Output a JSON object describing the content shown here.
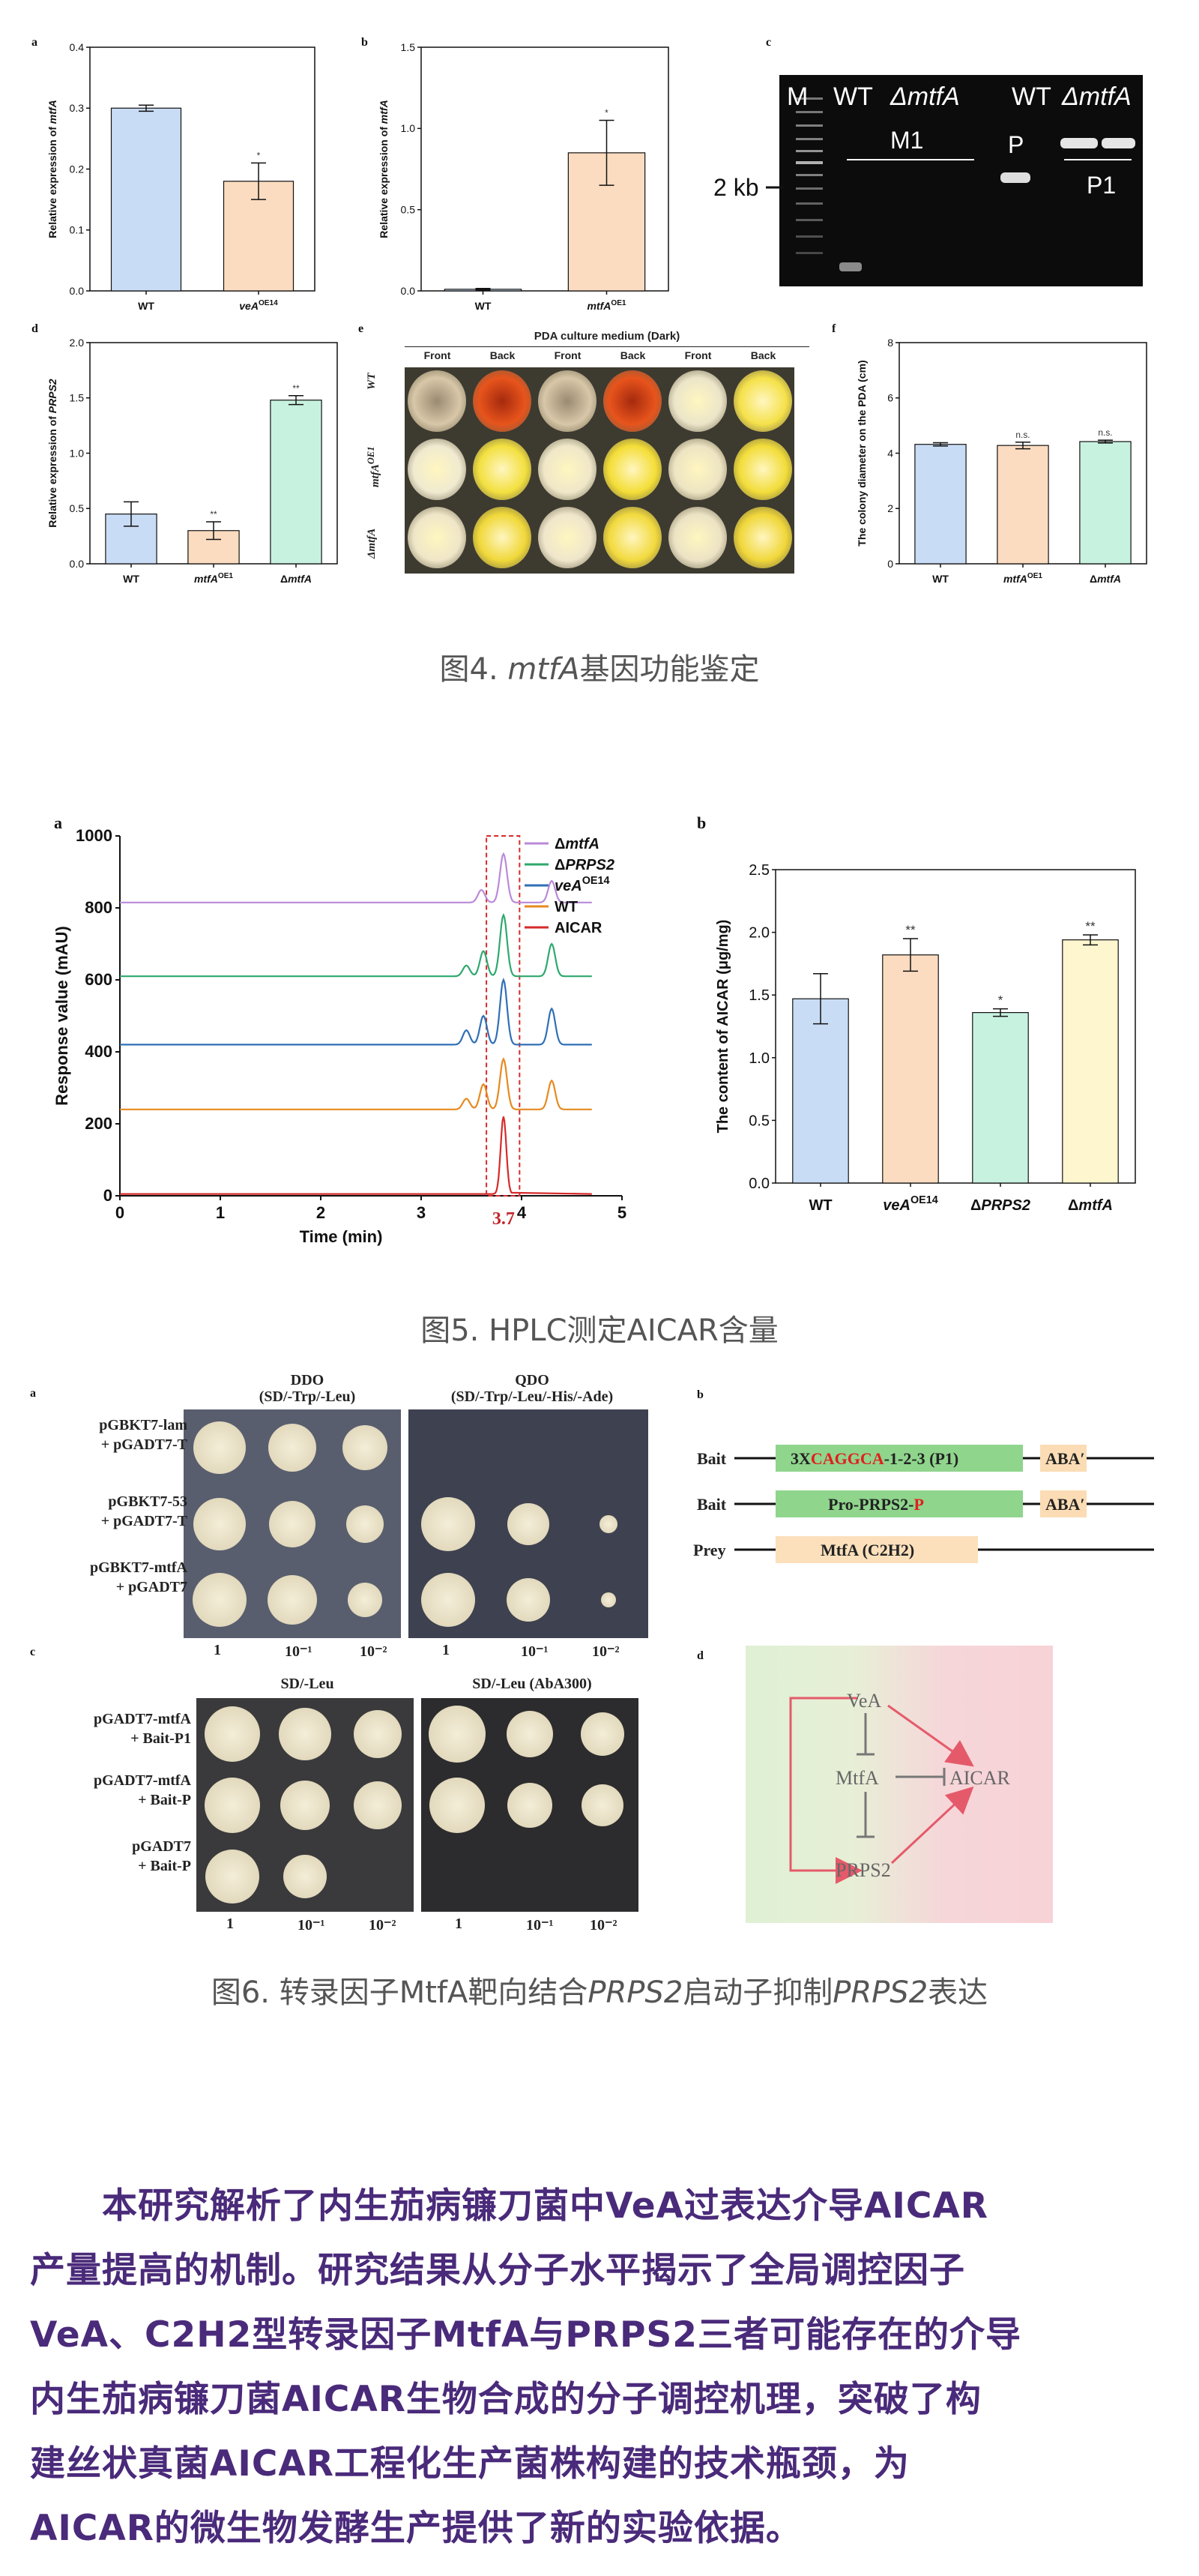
{
  "fig4": {
    "panels": {
      "a": "a",
      "b": "b",
      "c": "c",
      "d": "d",
      "e": "e",
      "f": "f"
    },
    "caption_prefix": "图4. ",
    "caption_gene": "mtfA",
    "caption_suffix": "基因功能鉴定",
    "gel": {
      "label_M": "M",
      "label_WT1": "WT",
      "label_dmtfA1": "ΔmtfA",
      "label_WT2": "WT",
      "label_dmtfA2": "ΔmtfA",
      "label_M1": "M1",
      "label_P": "P",
      "label_P1": "P1",
      "label_2kb": "2 kb"
    },
    "photo_e": {
      "title": "PDA culture medium  (Dark)",
      "cols": [
        "Front",
        "Back",
        "Front",
        "Back",
        "Front",
        "Back"
      ],
      "rows": [
        "WT",
        "mtfA",
        "ΔmtfA"
      ],
      "row2_sup": "OE1"
    }
  },
  "fig5": {
    "panels": {
      "a": "a",
      "b": "b"
    },
    "caption": "图5. HPLC测定AICAR含量",
    "peak_label": "3.7"
  },
  "fig6": {
    "panels": {
      "a": "a",
      "b": "b",
      "c": "c",
      "d": "d"
    },
    "caption_prefix": "图6. 转录因子MtfA靶向结合",
    "caption_gene1": "PRPS2",
    "caption_mid": "启动子抑制",
    "caption_gene2": "PRPS2",
    "caption_suffix": "表达",
    "panel_a": {
      "ddo_title": "DDO",
      "ddo_sub": "(SD/-Trp/-Leu)",
      "qdo_title": "QDO",
      "qdo_sub": "(SD/-Trp/-Leu/-His/-Ade)",
      "rows": [
        [
          "pGBKT7-lam",
          "+ pGADT7-T"
        ],
        [
          "pGBKT7-53",
          "+ pGADT7-T"
        ],
        [
          "pGBKT7-mtfA",
          "+ pGADT7"
        ]
      ],
      "dilutions": [
        "1",
        "10⁻¹",
        "10⁻²"
      ]
    },
    "panel_b": {
      "bait1_label": "Bait",
      "bait1_box_prefix": "3X",
      "bait1_box_red": "CAGGCA",
      "bait1_box_suffix": "-1-2-3 (P1)",
      "bait2_label": "Bait",
      "bait2_box_prefix": "Pro-PRPS2-",
      "bait2_box_red": "P",
      "aba": "ABA′",
      "prey_label": "Prey",
      "prey_box": "MtfA (C2H2)"
    },
    "panel_c": {
      "title1": "SD/-Leu",
      "title2": "SD/-Leu (AbA300)",
      "rows": [
        [
          "pGADT7-mtfA",
          "+ Bait-P1"
        ],
        [
          "pGADT7-mtfA",
          "+ Bait-P"
        ],
        [
          "pGADT7",
          "+ Bait-P"
        ]
      ],
      "dilutions": [
        "1",
        "10⁻¹",
        "10⁻²"
      ]
    },
    "panel_d": {
      "vea": "VeA",
      "mtfa": "MtfA",
      "aicar": "AICAR",
      "prps2": "PRPS2"
    }
  },
  "body": {
    "lines": [
      "本研究解析了内生茄病镰刀菌中VeA过表达介导AICAR",
      "产量提高的机制。研究结果从分子水平揭示了全局调控因子",
      "VeA、C2H2型转录因子MtfA与PRPS2三者可能存在的介导",
      "内生茄病镰刀菌AICAR生物合成的分子调控机理，突破了构",
      "建丝状真菌AICAR工程化生产菌株构建的技术瓶颈，为",
      "AICAR的微生物发酵生产提供了新的实验依据。"
    ]
  },
  "chart_data": [
    {
      "id": "fig4a",
      "type": "bar",
      "categories": [
        "WT",
        "veA OE14"
      ],
      "values": [
        0.3,
        0.18
      ],
      "errors": [
        0.005,
        0.03
      ],
      "significance": [
        "",
        "*"
      ],
      "ylabel": "Relative expression of mtfA",
      "ylim": [
        0,
        0.4
      ],
      "yticks": [
        "0.0",
        "0.1",
        "0.2",
        "0.3",
        "0.4"
      ],
      "colors": [
        "#c9dcf5",
        "#fbdcc0"
      ]
    },
    {
      "id": "fig4b",
      "type": "bar",
      "categories": [
        "WT",
        "mtfA OE1"
      ],
      "values": [
        0.01,
        0.85
      ],
      "errors": [
        0.005,
        0.2
      ],
      "significance": [
        "",
        "*"
      ],
      "ylabel": "Relative expression of mtfA",
      "ylim": [
        0,
        1.5
      ],
      "yticks": [
        "0.0",
        "0.5",
        "1.0",
        "1.5"
      ],
      "colors": [
        "#c9dcf5",
        "#fbdcc0"
      ]
    },
    {
      "id": "fig4d",
      "type": "bar",
      "categories": [
        "WT",
        "mtfA OE1",
        "ΔmtfA"
      ],
      "values": [
        0.45,
        0.3,
        1.48
      ],
      "errors": [
        0.11,
        0.08,
        0.04
      ],
      "significance": [
        "",
        "**",
        "**"
      ],
      "ylabel": "Relative expression of PRPS2",
      "ylim": [
        0,
        2.0
      ],
      "yticks": [
        "0.0",
        "0.5",
        "1.0",
        "1.5",
        "2.0"
      ],
      "colors": [
        "#c9dcf5",
        "#fbdcc0",
        "#c8f2e0"
      ]
    },
    {
      "id": "fig4f",
      "type": "bar",
      "categories": [
        "WT",
        "mtfA OE1",
        "ΔmtfA"
      ],
      "values": [
        4.32,
        4.28,
        4.42
      ],
      "errors": [
        0.06,
        0.12,
        0.05
      ],
      "significance": [
        "",
        "n.s.",
        "n.s."
      ],
      "ylabel": "The colony diameter on the PDA (cm)",
      "ylim": [
        0,
        8
      ],
      "yticks": [
        "0",
        "2",
        "4",
        "6",
        "8"
      ],
      "colors": [
        "#c9dcf5",
        "#fbdcc0",
        "#c8f2e0"
      ]
    },
    {
      "id": "fig5a",
      "type": "line",
      "xlabel": "Time (min)",
      "ylabel": "Response value (mAU)",
      "xlim": [
        0,
        5
      ],
      "ylim": [
        0,
        1000
      ],
      "xticks": [
        "0",
        "1",
        "2",
        "3",
        "4",
        "5"
      ],
      "yticks": [
        "0",
        "200",
        "400",
        "600",
        "800",
        "1000"
      ],
      "series": [
        {
          "name": "ΔmtfA",
          "color": "#b98ad9",
          "baseline": 815,
          "peaks": [
            [
              3.6,
              35
            ],
            [
              3.82,
              135
            ],
            [
              4.3,
              60
            ]
          ]
        },
        {
          "name": "ΔPRPS2",
          "color": "#2ea86e",
          "baseline": 610,
          "peaks": [
            [
              3.45,
              30
            ],
            [
              3.62,
              70
            ],
            [
              3.82,
              170
            ],
            [
              4.3,
              90
            ]
          ]
        },
        {
          "name": "veA OE14",
          "color": "#2f6fb5",
          "baseline": 420,
          "peaks": [
            [
              3.45,
              40
            ],
            [
              3.62,
              80
            ],
            [
              3.82,
              180
            ],
            [
              4.3,
              100
            ]
          ]
        },
        {
          "name": "WT",
          "color": "#e58a1f",
          "baseline": 240,
          "peaks": [
            [
              3.45,
              30
            ],
            [
              3.62,
              70
            ],
            [
              3.82,
              140
            ],
            [
              4.3,
              80
            ]
          ]
        },
        {
          "name": "AICAR",
          "color": "#d62a2a",
          "baseline": 5,
          "peaks": [
            [
              3.82,
              215
            ]
          ]
        }
      ],
      "annotation": "3.7"
    },
    {
      "id": "fig5b",
      "type": "bar",
      "categories": [
        "WT",
        "veA OE14",
        "ΔPRPS2",
        "ΔmtfA"
      ],
      "values": [
        1.47,
        1.82,
        1.36,
        1.94
      ],
      "errors": [
        0.2,
        0.13,
        0.03,
        0.04
      ],
      "significance": [
        "",
        "**",
        "*",
        "**"
      ],
      "ylabel": "The content of AICAR (μg/mg)",
      "ylim": [
        0,
        2.5
      ],
      "yticks": [
        "0.0",
        "0.5",
        "1.0",
        "1.5",
        "2.0",
        "2.5"
      ],
      "colors": [
        "#c9dcf5",
        "#fbdcc0",
        "#c8f2e0",
        "#fdf6cf"
      ]
    }
  ]
}
